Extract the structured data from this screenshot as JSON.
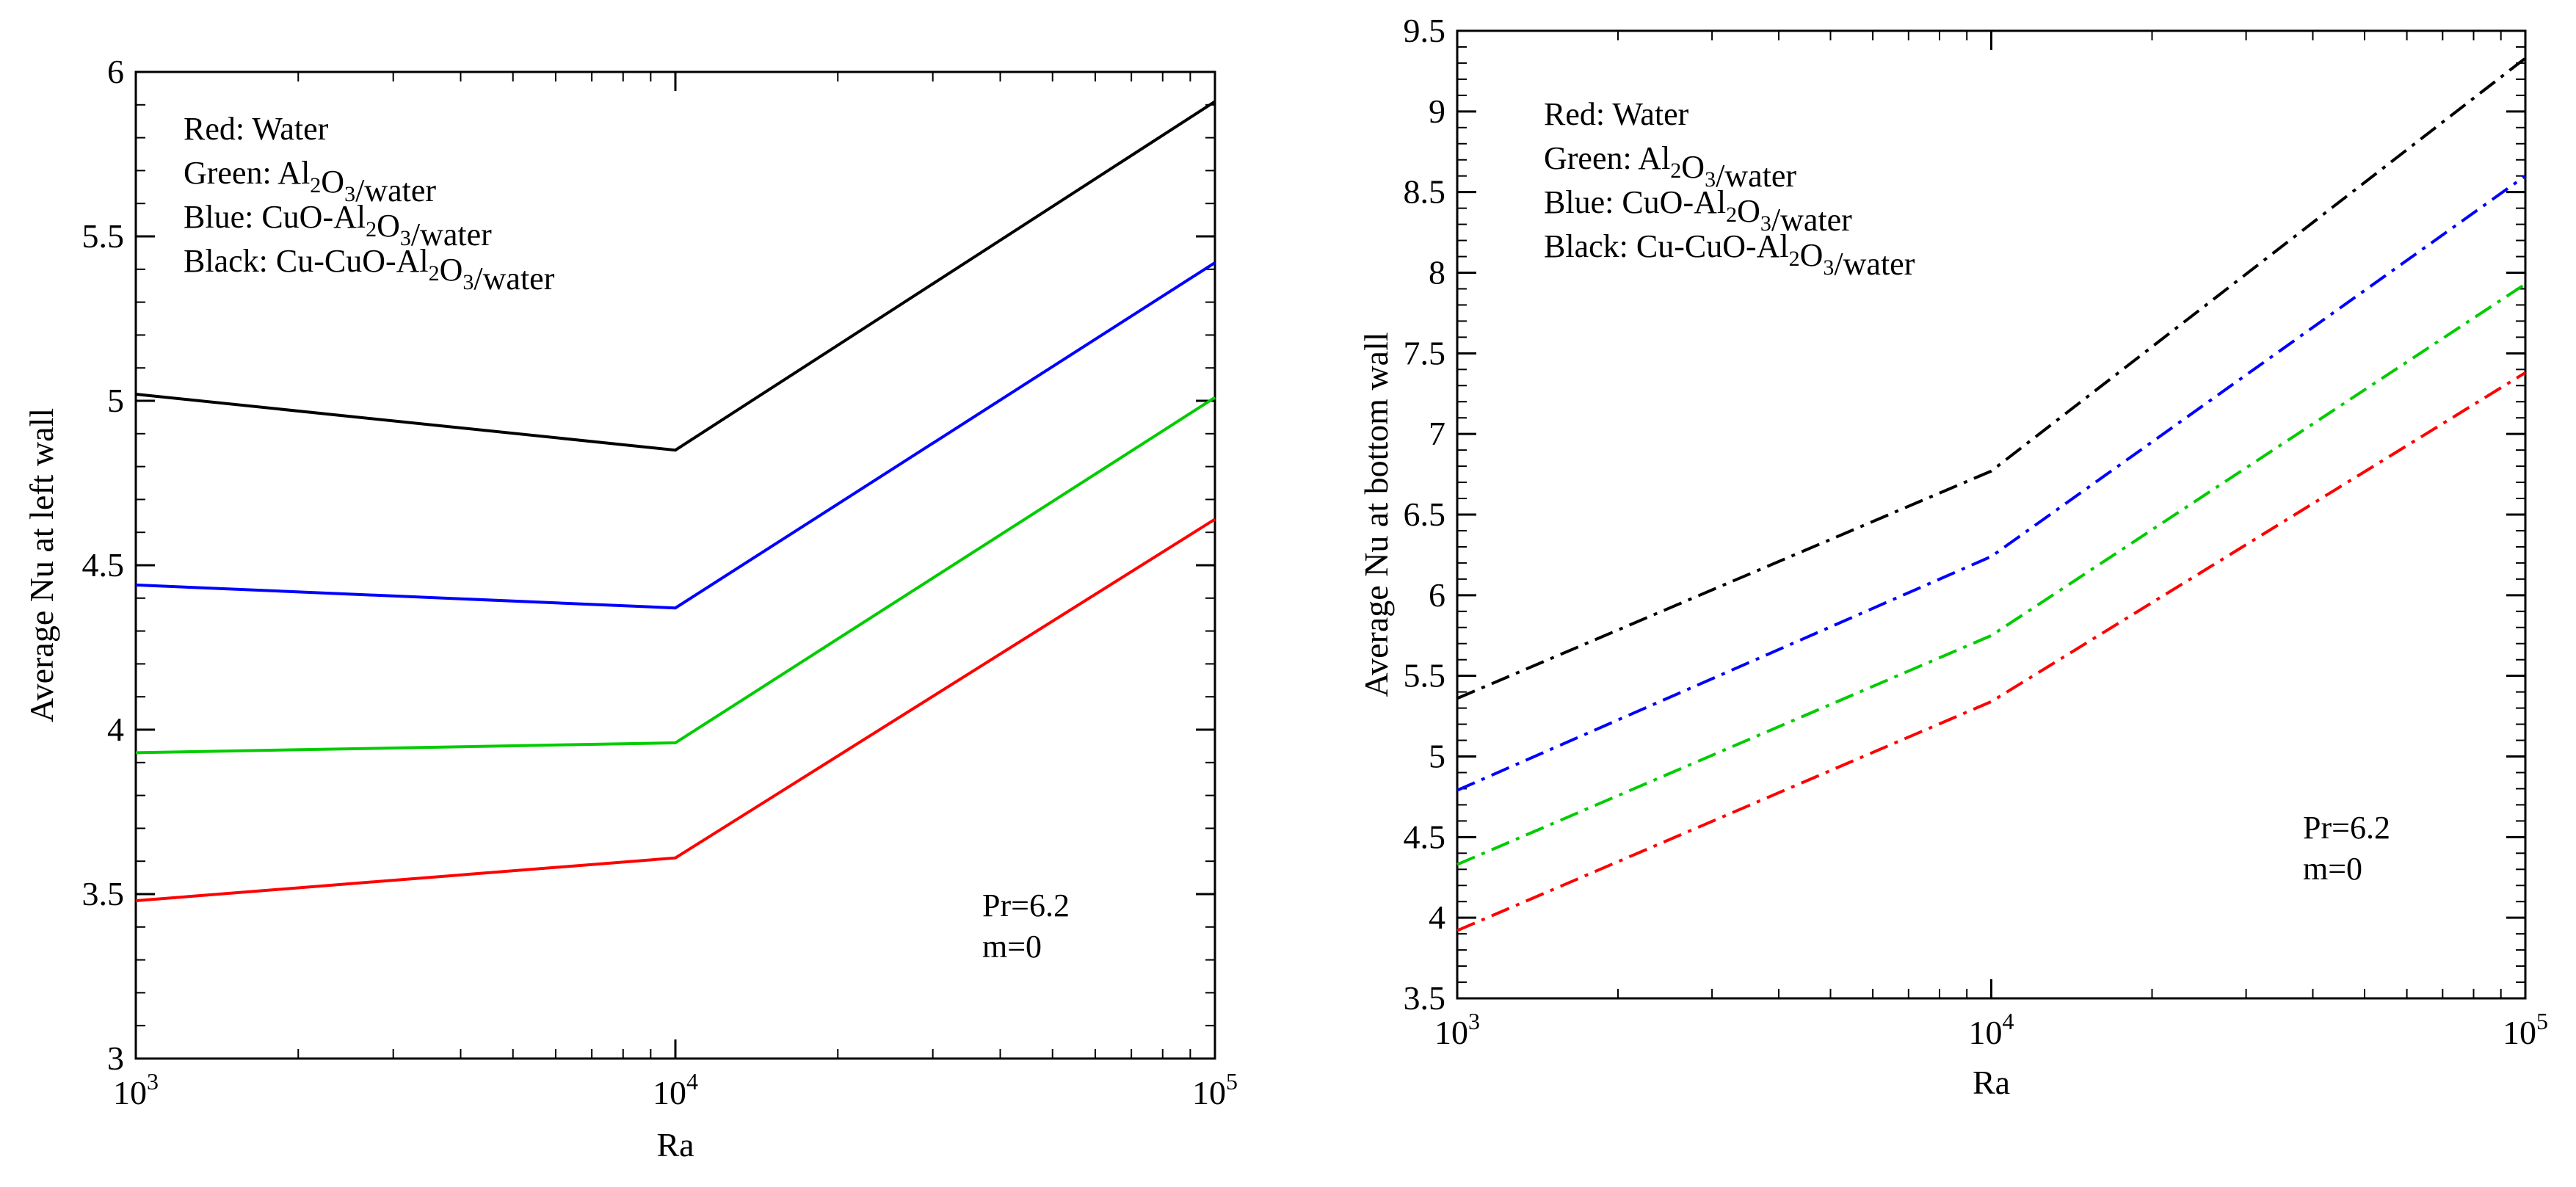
{
  "chart_data": [
    {
      "type": "line",
      "xscale": "log",
      "x": [
        1000,
        10000,
        100000
      ],
      "xticks": [
        {
          "value": 1000,
          "base": "10",
          "exp": "3"
        },
        {
          "value": 10000,
          "base": "10",
          "exp": "4"
        },
        {
          "value": 100000,
          "base": "10",
          "exp": "5"
        }
      ],
      "xlim": [
        1000,
        100000
      ],
      "ylim": [
        3,
        6
      ],
      "yticks": [
        "3",
        "3.5",
        "4",
        "4.5",
        "5",
        "5.5",
        "6"
      ],
      "xlabel": "Ra",
      "ylabel": "Average Nu at left wall",
      "line_style": "solid",
      "series": [
        {
          "name": "Water",
          "color": "#ff0000",
          "values": [
            3.48,
            3.61,
            4.64
          ]
        },
        {
          "name": "Al2O3/water",
          "color": "#00cc00",
          "values": [
            3.93,
            3.96,
            5.01
          ]
        },
        {
          "name": "CuO-Al2O3/water",
          "color": "#0000ff",
          "values": [
            4.44,
            4.37,
            5.42
          ]
        },
        {
          "name": "Cu-CuO-Al2O3/water",
          "color": "#000000",
          "values": [
            5.02,
            4.85,
            5.91
          ]
        }
      ],
      "legend": [
        {
          "color_word": "Red:",
          "parts": [
            {
              "t": "Water"
            }
          ]
        },
        {
          "color_word": "Green:",
          "parts": [
            {
              "t": "Al"
            },
            {
              "sub": "2"
            },
            {
              "t": "O"
            },
            {
              "sub": "3"
            },
            {
              "t": "/water"
            }
          ]
        },
        {
          "color_word": "Blue:",
          "parts": [
            {
              "t": "CuO-Al"
            },
            {
              "sub": "2"
            },
            {
              "t": "O"
            },
            {
              "sub": "3"
            },
            {
              "t": "/water"
            }
          ]
        },
        {
          "color_word": "Black:",
          "parts": [
            {
              "t": "Cu-CuO-Al"
            },
            {
              "sub": "2"
            },
            {
              "t": "O"
            },
            {
              "sub": "3"
            },
            {
              "t": "/water"
            }
          ]
        }
      ],
      "annotation": [
        "Pr=6.2",
        "m=0"
      ]
    },
    {
      "type": "line",
      "xscale": "log",
      "x": [
        1000,
        10000,
        100000
      ],
      "xticks": [
        {
          "value": 1000,
          "base": "10",
          "exp": "3"
        },
        {
          "value": 10000,
          "base": "10",
          "exp": "4"
        },
        {
          "value": 100000,
          "base": "10",
          "exp": "5"
        }
      ],
      "xlim": [
        1000,
        100000
      ],
      "ylim": [
        3.5,
        9.5
      ],
      "yticks": [
        "3.5",
        "4",
        "4.5",
        "5",
        "5.5",
        "6",
        "6.5",
        "7",
        "7.5",
        "8",
        "8.5",
        "9",
        "9.5"
      ],
      "xlabel": "Ra",
      "ylabel": "Average Nu at bottom wall",
      "line_style": "dash-dot",
      "series": [
        {
          "name": "Water",
          "color": "#ff0000",
          "values": [
            3.92,
            5.34,
            7.38
          ]
        },
        {
          "name": "Al2O3/water",
          "color": "#00cc00",
          "values": [
            4.33,
            5.75,
            7.93
          ]
        },
        {
          "name": "CuO-Al2O3/water",
          "color": "#0000ff",
          "values": [
            4.79,
            6.24,
            8.6
          ]
        },
        {
          "name": "Cu-CuO-Al2O3/water",
          "color": "#000000",
          "values": [
            5.36,
            6.77,
            9.33
          ]
        }
      ],
      "legend": [
        {
          "color_word": "Red:",
          "parts": [
            {
              "t": "Water"
            }
          ]
        },
        {
          "color_word": "Green:",
          "parts": [
            {
              "t": "Al"
            },
            {
              "sub": "2"
            },
            {
              "t": "O"
            },
            {
              "sub": "3"
            },
            {
              "t": "/water"
            }
          ]
        },
        {
          "color_word": "Blue:",
          "parts": [
            {
              "t": "CuO-Al"
            },
            {
              "sub": "2"
            },
            {
              "t": "O"
            },
            {
              "sub": "3"
            },
            {
              "t": "/water"
            }
          ]
        },
        {
          "color_word": "Black:",
          "parts": [
            {
              "t": "Cu-CuO-Al"
            },
            {
              "sub": "2"
            },
            {
              "t": "O"
            },
            {
              "sub": "3"
            },
            {
              "t": "/water"
            }
          ]
        }
      ],
      "annotation": [
        "Pr=6.2",
        "m=0"
      ]
    }
  ]
}
